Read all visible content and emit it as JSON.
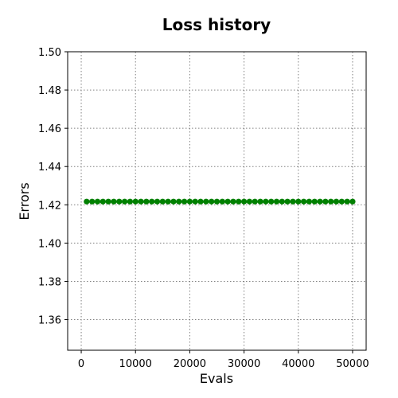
{
  "chart_data": {
    "type": "line",
    "title": "Loss history",
    "xlabel": "Evals",
    "ylabel": "Errors",
    "xlim": [
      -2500,
      52500
    ],
    "ylim": [
      1.344,
      1.5
    ],
    "xticks": [
      0,
      10000,
      20000,
      30000,
      40000,
      50000
    ],
    "yticks": [
      1.36,
      1.38,
      1.4,
      1.42,
      1.44,
      1.46,
      1.48,
      1.5
    ],
    "ytick_labels": [
      "1.36",
      "1.38",
      "1.40",
      "1.42",
      "1.44",
      "1.46",
      "1.48",
      "1.50"
    ],
    "grid": true,
    "series": [
      {
        "color": "#008000",
        "marker": "circle",
        "x_start": 1000,
        "x_step": 1000,
        "x_count": 50,
        "y_constant": 1.4217
      }
    ]
  }
}
